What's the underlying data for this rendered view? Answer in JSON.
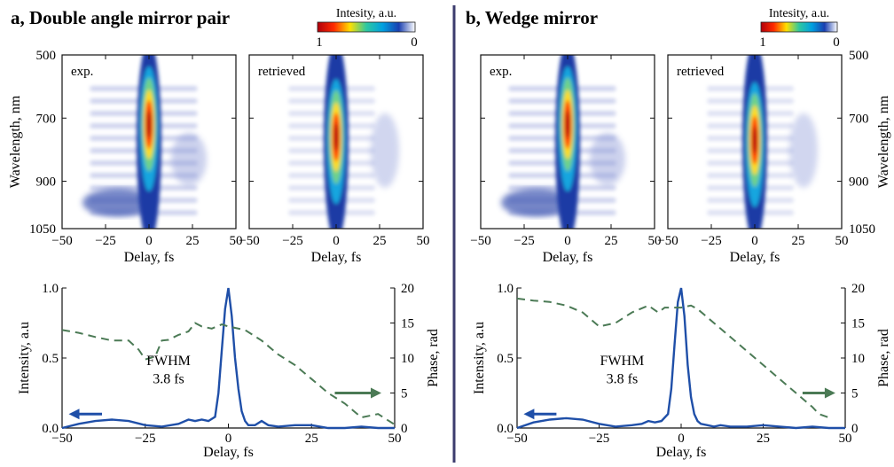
{
  "panels": [
    {
      "title": "a, Double angle mirror pair"
    },
    {
      "title": "b, Wedge mirror"
    }
  ],
  "colorbar": {
    "label": "Intesity, a.u.",
    "max_label": "1",
    "min_label": "0"
  },
  "divider_color": "#3c3c6e",
  "chart_data": [
    {
      "type": "heatmap",
      "panel": "a",
      "inset_label": "exp.",
      "x_ticks": [
        "−50",
        "−25",
        "0",
        "25",
        "50"
      ],
      "xlabel": "Delay, fs",
      "xlim": [
        -50,
        50
      ],
      "y_ticks": [
        "500",
        "700",
        "900",
        "1050"
      ],
      "ylabel": "Wavelength, nm",
      "ylim": [
        1050,
        500
      ],
      "colormap": [
        "#b0000b",
        "#ff2a00",
        "#ffe000",
        "#2ec8a0",
        "#00a0e0",
        "#1a3fb0",
        "#ffffff"
      ],
      "peak": {
        "delay": 0,
        "wavelength": 720
      }
    },
    {
      "type": "heatmap",
      "panel": "a",
      "inset_label": "retrieved",
      "x_ticks": [
        "−50",
        "−25",
        "0",
        "25",
        "50"
      ],
      "xlabel": "Delay, fs",
      "xlim": [
        -50,
        50
      ],
      "ylim": [
        1050,
        500
      ],
      "peak": {
        "delay": 0,
        "wavelength": 760
      }
    },
    {
      "type": "heatmap",
      "panel": "b",
      "inset_label": "exp.",
      "x_ticks": [
        "−50",
        "−25",
        "0",
        "25",
        "50"
      ],
      "xlabel": "Delay, fs",
      "xlim": [
        -50,
        50
      ],
      "ylim": [
        1050,
        500
      ],
      "peak": {
        "delay": 0,
        "wavelength": 720
      }
    },
    {
      "type": "heatmap",
      "panel": "b",
      "inset_label": "retrieved",
      "x_ticks": [
        "−50",
        "−25",
        "0",
        "25",
        "50"
      ],
      "xlabel": "Delay, fs",
      "xlim": [
        -50,
        50
      ],
      "y_ticks": [
        "500",
        "700",
        "900",
        "1050"
      ],
      "ylabel": "Wavelength, nm",
      "ylim": [
        1050,
        500
      ],
      "peak": {
        "delay": 0,
        "wavelength": 770
      }
    },
    {
      "type": "line",
      "panel": "a",
      "xlabel": "Delay, fs",
      "x_ticks": [
        "−50",
        "−25",
        "0",
        "25",
        "50"
      ],
      "xlim": [
        -50,
        50
      ],
      "ylabel": "Intensity, a.u",
      "y_ticks": [
        "0.0",
        "0.5",
        "1.0"
      ],
      "ylim": [
        0,
        1
      ],
      "y2label": "Phase, rad",
      "y2_ticks": [
        "0",
        "5",
        "10",
        "15",
        "20"
      ],
      "y2lim": [
        0,
        20
      ],
      "annotation": [
        "FWHM",
        "3.8 fs"
      ],
      "series": [
        {
          "axis": "left",
          "color": "#1f4fa8",
          "x": [
            -50,
            -45,
            -40,
            -35,
            -30,
            -25,
            -20,
            -15,
            -12,
            -10,
            -8,
            -6,
            -4,
            -3,
            -2,
            -1,
            0,
            1,
            2,
            3,
            4,
            5,
            6,
            8,
            10,
            12,
            15,
            20,
            25,
            30,
            35,
            40,
            45,
            50
          ],
          "y": [
            0.0,
            0.03,
            0.05,
            0.06,
            0.05,
            0.02,
            0.01,
            0.03,
            0.06,
            0.05,
            0.06,
            0.05,
            0.08,
            0.25,
            0.55,
            0.85,
            1.0,
            0.8,
            0.5,
            0.28,
            0.12,
            0.05,
            0.02,
            0.02,
            0.05,
            0.02,
            0.01,
            0.02,
            0.02,
            0.0,
            0.0,
            0.01,
            0.0,
            0.0
          ]
        },
        {
          "axis": "right",
          "color": "#4b7a55",
          "style": "dashed",
          "x": [
            -50,
            -45,
            -40,
            -35,
            -30,
            -27,
            -25,
            -22,
            -20,
            -18,
            -15,
            -12,
            -10,
            -8,
            -5,
            -2,
            0,
            5,
            10,
            15,
            20,
            25,
            30,
            35,
            40,
            45,
            50
          ],
          "y": [
            14,
            13.6,
            13,
            12.5,
            12.5,
            11.2,
            9.8,
            10.2,
            12.5,
            12.6,
            13.3,
            13.8,
            15,
            14.5,
            14.2,
            14.8,
            14.5,
            14,
            12.5,
            10.5,
            9,
            7,
            5,
            3.5,
            1.5,
            2.0,
            0.5
          ]
        }
      ],
      "arrows": [
        {
          "direction": "left",
          "side": "intensity"
        },
        {
          "direction": "right",
          "side": "phase"
        }
      ]
    },
    {
      "type": "line",
      "panel": "b",
      "xlabel": "Delay, fs",
      "x_ticks": [
        "−50",
        "−25",
        "0",
        "25",
        "50"
      ],
      "xlim": [
        -50,
        50
      ],
      "ylabel": "Intensity, a.u",
      "y_ticks": [
        "0.0",
        "0.5",
        "1.0"
      ],
      "ylim": [
        0,
        1
      ],
      "y2label": "Phase, rad",
      "y2_ticks": [
        "0",
        "5",
        "10",
        "15",
        "20"
      ],
      "y2lim": [
        0,
        20
      ],
      "annotation": [
        "FWHM",
        "3.8 fs"
      ],
      "series": [
        {
          "axis": "left",
          "color": "#1f4fa8",
          "x": [
            -50,
            -45,
            -40,
            -35,
            -30,
            -25,
            -20,
            -15,
            -12,
            -10,
            -8,
            -6,
            -4,
            -3,
            -2,
            -1,
            0,
            1,
            2,
            3,
            4,
            5,
            6,
            8,
            10,
            12,
            15,
            20,
            25,
            30,
            35,
            40,
            45,
            50
          ],
          "y": [
            0.0,
            0.04,
            0.06,
            0.07,
            0.06,
            0.03,
            0.01,
            0.02,
            0.03,
            0.05,
            0.04,
            0.05,
            0.1,
            0.28,
            0.6,
            0.9,
            1.0,
            0.8,
            0.45,
            0.22,
            0.1,
            0.05,
            0.03,
            0.02,
            0.01,
            0.02,
            0.01,
            0.01,
            0.02,
            0.01,
            0.0,
            0.01,
            0.0,
            0.0
          ]
        },
        {
          "axis": "right",
          "color": "#4b7a55",
          "style": "dashed",
          "x": [
            -50,
            -45,
            -40,
            -35,
            -30,
            -25,
            -20,
            -15,
            -10,
            -7,
            -5,
            -2,
            0,
            3,
            5,
            10,
            15,
            20,
            25,
            30,
            35,
            40,
            42,
            45
          ],
          "y": [
            18.5,
            18.2,
            18,
            17.5,
            16.5,
            14.5,
            15,
            16.5,
            17.5,
            16.5,
            17.2,
            17.2,
            17.2,
            17.5,
            17,
            15,
            13,
            11,
            9,
            7,
            5,
            3,
            2,
            1.5
          ]
        }
      ],
      "arrows": [
        {
          "direction": "left",
          "side": "intensity"
        },
        {
          "direction": "right",
          "side": "phase"
        }
      ]
    }
  ]
}
